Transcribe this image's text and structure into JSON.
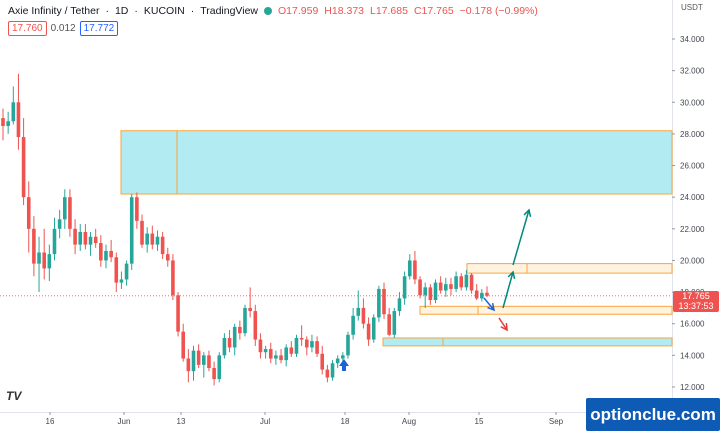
{
  "header": {
    "symbol": "Axie Infinity / Tether",
    "interval": "1D",
    "exchange": "KUCOIN",
    "brand": "TradingView",
    "open": "O17.959",
    "high": "H18.373",
    "low": "L17.685",
    "close": "C17.765",
    "change": "−0.178 (−0.99%)",
    "sell_price": "17.760",
    "spread": "0.012",
    "buy_price": "17.772"
  },
  "axis": {
    "currency": "USDT",
    "price_labels": [
      "34.000",
      "32.000",
      "30.000",
      "28.000",
      "26.000",
      "24.000",
      "22.000",
      "20.000",
      "18.000",
      "16.000",
      "14.000",
      "12.000"
    ],
    "date_labels": [
      "16",
      "Jun",
      "13",
      "Jul",
      "18",
      "Aug",
      "15",
      "Sep"
    ],
    "current_price": "17.765",
    "countdown": "13:37:53"
  },
  "watermark": "optionclue.com",
  "colors": {
    "up": "#26a69a",
    "down": "#ef5350",
    "zone_fill": "#b2ebf2",
    "zone_border": "#f7a63c",
    "orange_fill": "#fff3e0",
    "arrow_teal": "#00897b",
    "arrow_blue": "#1e63d6",
    "arrow_red": "#e53935"
  },
  "chart_data": {
    "type": "candlestick",
    "y_range": [
      11.0,
      36.0
    ],
    "zones": [
      {
        "kind": "resistance",
        "from": 24.2,
        "to": 28.2
      },
      {
        "kind": "level",
        "from": 19.2,
        "to": 19.8
      },
      {
        "kind": "level",
        "from": 16.6,
        "to": 17.1
      },
      {
        "kind": "support",
        "from": 14.6,
        "to": 15.1
      }
    ],
    "candles": [
      [
        29.0,
        29.6,
        27.6,
        28.5
      ],
      [
        28.5,
        29.4,
        28.0,
        28.8
      ],
      [
        28.8,
        31.0,
        28.6,
        30.0
      ],
      [
        30.0,
        31.8,
        27.0,
        27.8
      ],
      [
        27.8,
        29.0,
        23.5,
        24.0
      ],
      [
        24.0,
        25.0,
        20.5,
        22.0
      ],
      [
        22.0,
        22.8,
        19.0,
        19.8
      ],
      [
        19.8,
        21.5,
        18.0,
        20.5
      ],
      [
        20.5,
        22.0,
        18.8,
        19.5
      ],
      [
        19.5,
        21.0,
        18.7,
        20.4
      ],
      [
        20.4,
        22.7,
        20.0,
        22.0
      ],
      [
        22.0,
        23.2,
        21.4,
        22.6
      ],
      [
        22.6,
        24.5,
        22.0,
        24.0
      ],
      [
        24.0,
        24.5,
        21.5,
        22.0
      ],
      [
        22.0,
        22.6,
        20.4,
        21.0
      ],
      [
        21.0,
        22.3,
        20.6,
        21.8
      ],
      [
        21.8,
        22.3,
        20.7,
        21.0
      ],
      [
        21.0,
        21.8,
        20.3,
        21.5
      ],
      [
        21.5,
        22.0,
        20.8,
        21.1
      ],
      [
        21.1,
        21.6,
        19.6,
        20.0
      ],
      [
        20.0,
        21.0,
        19.5,
        20.6
      ],
      [
        20.6,
        21.3,
        19.9,
        20.2
      ],
      [
        20.2,
        20.5,
        18.0,
        18.6
      ],
      [
        18.6,
        19.3,
        18.2,
        18.8
      ],
      [
        18.8,
        20.0,
        18.4,
        19.8
      ],
      [
        19.8,
        24.2,
        19.4,
        24.0
      ],
      [
        24.0,
        24.3,
        22.0,
        22.5
      ],
      [
        22.5,
        22.9,
        20.8,
        21.0
      ],
      [
        21.0,
        22.1,
        20.5,
        21.7
      ],
      [
        21.7,
        22.2,
        20.7,
        21.0
      ],
      [
        21.0,
        21.9,
        20.6,
        21.5
      ],
      [
        21.5,
        21.8,
        20.1,
        20.4
      ],
      [
        20.4,
        20.8,
        19.6,
        20.0
      ],
      [
        20.0,
        20.4,
        17.5,
        17.8
      ],
      [
        17.8,
        18.0,
        15.2,
        15.5
      ],
      [
        15.5,
        16.0,
        13.6,
        13.8
      ],
      [
        13.8,
        14.4,
        12.3,
        13.0
      ],
      [
        13.0,
        14.6,
        12.4,
        14.3
      ],
      [
        14.3,
        14.7,
        13.2,
        13.4
      ],
      [
        13.4,
        14.2,
        12.6,
        14.0
      ],
      [
        14.0,
        14.3,
        13.0,
        13.2
      ],
      [
        13.2,
        13.6,
        12.1,
        12.5
      ],
      [
        12.5,
        14.2,
        12.3,
        14.0
      ],
      [
        14.0,
        15.4,
        13.8,
        15.1
      ],
      [
        15.1,
        15.6,
        14.2,
        14.5
      ],
      [
        14.5,
        16.0,
        14.0,
        15.8
      ],
      [
        15.8,
        16.2,
        15.0,
        15.4
      ],
      [
        15.4,
        17.2,
        15.2,
        17.0
      ],
      [
        17.0,
        18.3,
        16.4,
        16.8
      ],
      [
        16.8,
        17.2,
        14.6,
        15.0
      ],
      [
        15.0,
        15.4,
        13.8,
        14.2
      ],
      [
        14.2,
        14.6,
        13.8,
        14.4
      ],
      [
        14.4,
        14.8,
        13.5,
        13.8
      ],
      [
        13.8,
        14.3,
        13.4,
        14.0
      ],
      [
        14.0,
        14.4,
        13.5,
        13.7
      ],
      [
        13.7,
        14.7,
        13.3,
        14.5
      ],
      [
        14.5,
        14.9,
        13.9,
        14.1
      ],
      [
        14.1,
        15.3,
        13.9,
        15.1
      ],
      [
        15.1,
        15.9,
        14.6,
        15.0
      ],
      [
        15.0,
        15.2,
        14.0,
        14.5
      ],
      [
        14.5,
        15.3,
        14.2,
        14.9
      ],
      [
        14.9,
        15.2,
        13.9,
        14.1
      ],
      [
        14.1,
        14.6,
        12.8,
        13.1
      ],
      [
        13.1,
        13.4,
        12.3,
        12.6
      ],
      [
        12.6,
        13.7,
        12.4,
        13.5
      ],
      [
        13.5,
        14.0,
        13.2,
        13.8
      ],
      [
        13.8,
        14.2,
        13.3,
        14.0
      ],
      [
        14.0,
        15.5,
        13.8,
        15.3
      ],
      [
        15.3,
        17.0,
        15.0,
        16.5
      ],
      [
        16.5,
        18.1,
        16.2,
        17.0
      ],
      [
        17.0,
        17.6,
        15.7,
        16.0
      ],
      [
        16.0,
        16.4,
        14.6,
        15.0
      ],
      [
        15.0,
        16.6,
        14.8,
        16.4
      ],
      [
        16.4,
        18.4,
        16.1,
        18.2
      ],
      [
        18.2,
        18.6,
        16.3,
        16.6
      ],
      [
        16.6,
        17.0,
        15.2,
        15.3
      ],
      [
        15.3,
        17.0,
        15.1,
        16.8
      ],
      [
        16.8,
        18.0,
        16.5,
        17.6
      ],
      [
        17.6,
        19.3,
        17.2,
        19.0
      ],
      [
        19.0,
        20.4,
        18.8,
        20.0
      ],
      [
        20.0,
        20.6,
        18.5,
        18.8
      ],
      [
        18.8,
        19.0,
        17.6,
        17.8
      ],
      [
        17.8,
        18.6,
        17.0,
        18.3
      ],
      [
        18.3,
        18.5,
        17.2,
        17.5
      ],
      [
        17.5,
        18.8,
        17.3,
        18.6
      ],
      [
        18.6,
        19.0,
        17.9,
        18.1
      ],
      [
        18.1,
        18.9,
        17.7,
        18.5
      ],
      [
        18.5,
        18.9,
        17.8,
        18.2
      ],
      [
        18.2,
        19.3,
        18.0,
        19.0
      ],
      [
        19.0,
        19.2,
        18.1,
        18.3
      ],
      [
        18.3,
        19.4,
        18.1,
        19.1
      ],
      [
        19.1,
        19.2,
        17.9,
        18.1
      ],
      [
        18.1,
        18.5,
        17.5,
        17.6
      ],
      [
        17.6,
        18.2,
        17.4,
        17.95
      ],
      [
        17.959,
        18.373,
        17.685,
        17.765
      ]
    ]
  }
}
